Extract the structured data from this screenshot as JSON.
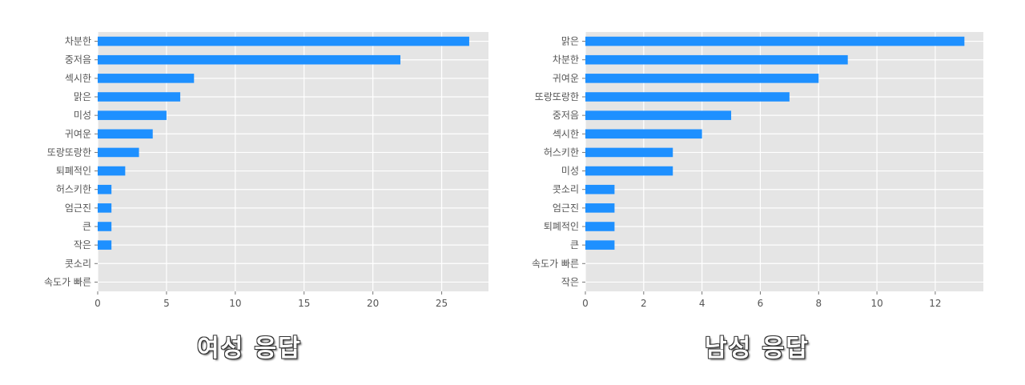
{
  "chart_data": [
    {
      "type": "bar",
      "orientation": "horizontal",
      "caption": "여성 응답",
      "categories": [
        "차분한",
        "중저음",
        "섹시한",
        "맑은",
        "미성",
        "귀여운",
        "또랑또랑한",
        "퇴폐적인",
        "허스키한",
        "엄근진",
        "큰",
        "작은",
        "콧소리",
        "속도가 빠른"
      ],
      "values": [
        27,
        22,
        7,
        6,
        5,
        4,
        3,
        2,
        1,
        1,
        1,
        1,
        0,
        0
      ],
      "xlim": [
        0,
        28.4
      ],
      "xticks": [
        0,
        5,
        10,
        15,
        20,
        25
      ],
      "grid": true,
      "bar_color": "#1E90FF",
      "background_color": "#E5E5E5"
    },
    {
      "type": "bar",
      "orientation": "horizontal",
      "caption": "남성 응답",
      "categories": [
        "맑은",
        "차분한",
        "귀여운",
        "또랑또랑한",
        "중저음",
        "섹시한",
        "허스키한",
        "미성",
        "콧소리",
        "엄근진",
        "퇴폐적인",
        "큰",
        "속도가 빠른",
        "작은"
      ],
      "values": [
        13,
        9,
        8,
        7,
        5,
        4,
        3,
        3,
        1,
        1,
        1,
        1,
        0,
        0
      ],
      "xlim": [
        0,
        13.65
      ],
      "xticks": [
        0,
        2,
        4,
        6,
        8,
        10,
        12
      ],
      "grid": true,
      "bar_color": "#1E90FF",
      "background_color": "#E5E5E5"
    }
  ]
}
